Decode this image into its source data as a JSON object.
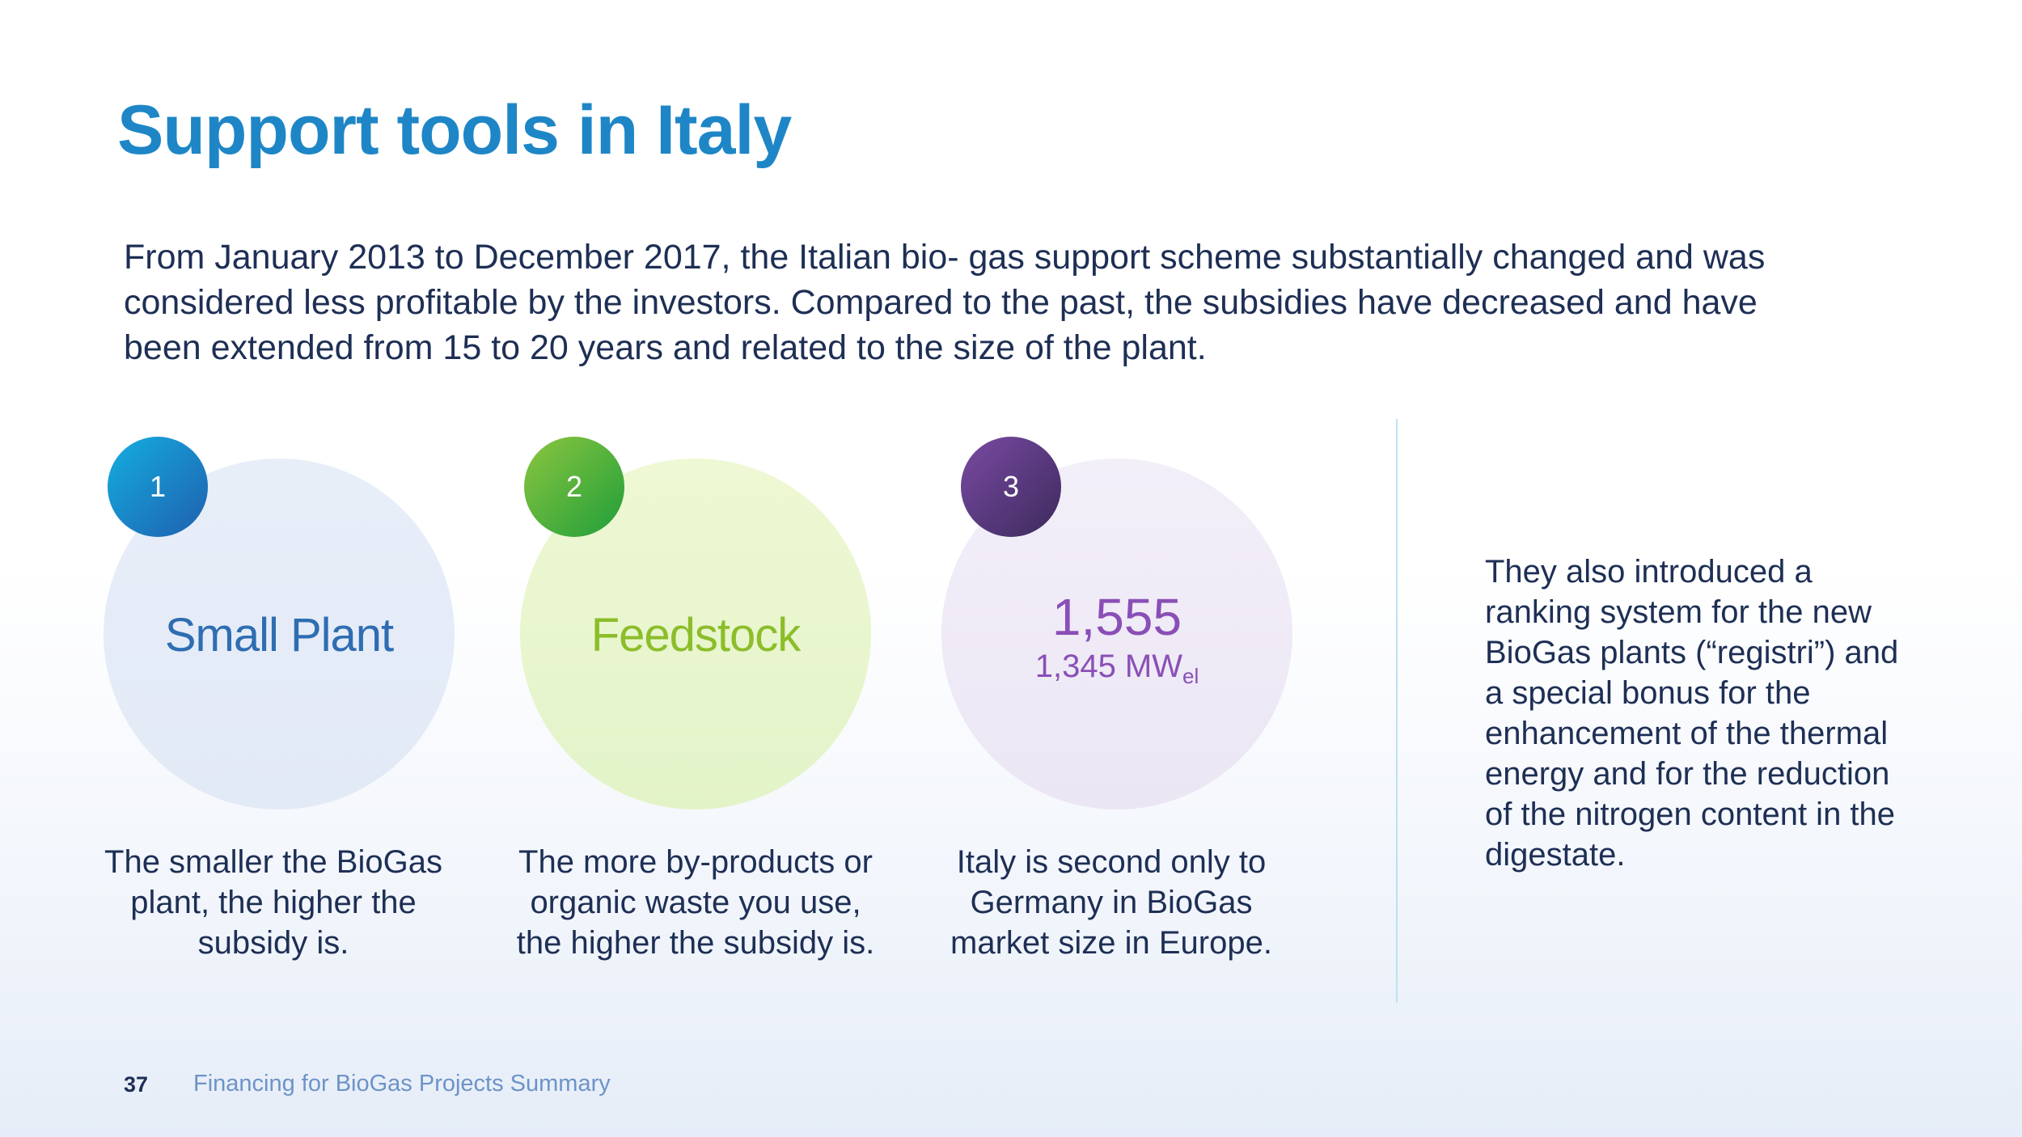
{
  "slide": {
    "title": "Support tools in Italy",
    "intro": "From January 2013 to December 2017, the Italian bio- gas support scheme substantially changed and was considered less profitable by the investors. Compared to the past, the subsidies have decreased and have been extended from 15 to 20 years and related to the size of the plant."
  },
  "items": [
    {
      "number": "1",
      "heading": "Small Plant",
      "caption": "The smaller the BioGas plant, the higher the subsidy is.",
      "color": "#2e6db2"
    },
    {
      "number": "2",
      "heading": "Feedstock",
      "caption": "The more by-products or organic waste you use, the higher the subsidy is.",
      "color": "#8cbd2a"
    },
    {
      "number": "3",
      "heading": "1,555",
      "subvalue": "1,345 MW",
      "subvalue_subscript": "el",
      "caption": "Italy is second only to Germany in BioGas market size in Europe.",
      "color": "#8a4fb6"
    }
  ],
  "side_note": "They also introduced a ranking system for the new BioGas plants (“registri”) and a special bonus for the enhancement of the thermal energy and for the reduction of the nitrogen content in the digestate.",
  "footer": {
    "page_number": "37",
    "document_title": "Financing for BioGas Projects Summary"
  }
}
